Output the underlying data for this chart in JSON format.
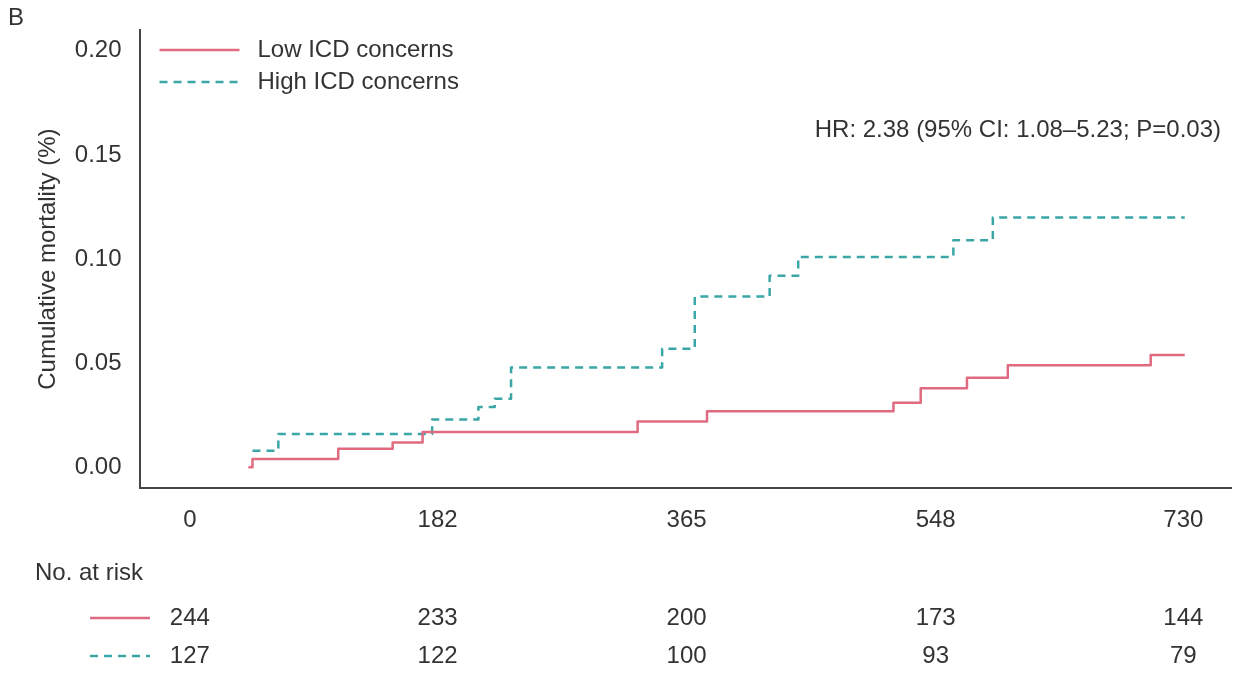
{
  "chart_data": {
    "type": "step",
    "title": "B",
    "ylabel": "Cumulative mortality (%)",
    "series": [
      {
        "name": "Low ICD concerns",
        "color": "#e06b80",
        "line_style": "solid",
        "x": [
          43,
          46,
          109,
          149,
          171,
          329,
          380,
          517,
          537,
          571,
          601,
          706,
          731
        ],
        "values": [
          0,
          0.004,
          0.009,
          0.012,
          0.017,
          0.022,
          0.027,
          0.031,
          0.038,
          0.043,
          0.049,
          0.054,
          0.054
        ]
      },
      {
        "name": "High ICD concerns",
        "color": "#3aa6a6",
        "line_style": "dashed",
        "x": [
          46,
          65,
          178,
          212,
          224,
          236,
          347,
          371,
          426,
          447,
          561,
          590,
          731
        ],
        "values": [
          0.008,
          0.016,
          0.023,
          0.029,
          0.033,
          0.048,
          0.057,
          0.082,
          0.092,
          0.101,
          0.109,
          0.12,
          0.12
        ]
      }
    ],
    "xlim": [
      -37,
      765
    ],
    "xticks": [
      0,
      182,
      365,
      548,
      730
    ],
    "ylim": [
      -0.01,
      0.21
    ],
    "yticks": [
      {
        "value": 0,
        "label": "0.00"
      },
      {
        "value": 0.05,
        "label": "0.05"
      },
      {
        "value": 0.1,
        "label": "0.10"
      },
      {
        "value": 0.15,
        "label": "0.15"
      },
      {
        "value": 0.2,
        "label": "0.20"
      }
    ],
    "grid": false,
    "legend": "top left",
    "marker": "none",
    "annotations": [
      "HR: 2.38 (95% CI: 1.08–5.23; P=0.03)",
      "No. at risk",
      "244",
      "233",
      "200",
      "173",
      "144",
      "127",
      "122",
      "100",
      "93",
      "79"
    ]
  }
}
